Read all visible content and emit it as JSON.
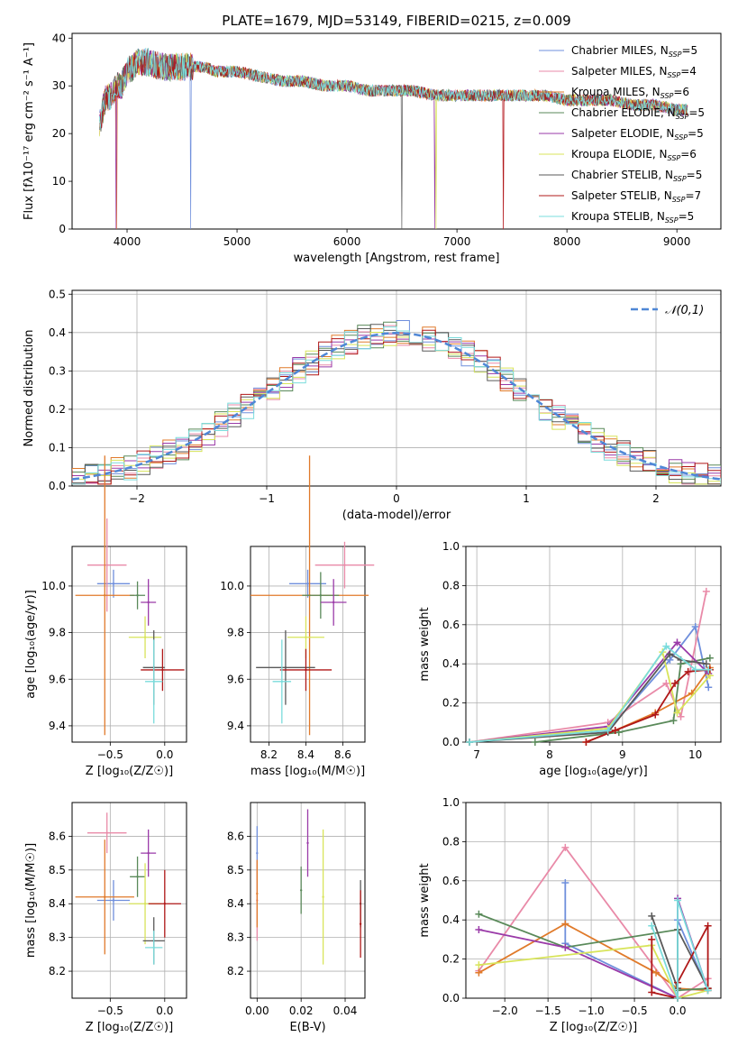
{
  "figure_title": "PLATE=1679, MJD=53149, FIBERID=0215, z=0.009",
  "colors": {
    "Chabrier MILES": "#6f8fdc",
    "Salpeter MILES": "#e98aa8",
    "Kroupa MILES": "#e07a2a",
    "Chabrier ELODIE": "#5a8a5a",
    "Salpeter ELODIE": "#9a3aa8",
    "Kroupa ELODIE": "#d8e45a",
    "Chabrier STELIB": "#5a5a5a",
    "Salpeter STELIB": "#b01818",
    "Kroupa STELIB": "#7adcdc",
    "normal": "#4f87d6"
  },
  "chart_data": [
    {
      "type": "line",
      "panel": "spectrum",
      "xlabel": "wavelength [Angstrom, rest frame]",
      "ylabel": "Flux [fλ10⁻¹⁷ erg cm⁻² s⁻¹ A⁻¹]",
      "xlim": [
        3500,
        9400
      ],
      "ylim": [
        0,
        41
      ],
      "xticks": [
        "4000",
        "5000",
        "6000",
        "7000",
        "8000",
        "9000"
      ],
      "yticks": [
        "0",
        "10",
        "20",
        "30",
        "40"
      ],
      "x": [
        3750,
        3800,
        3850,
        3900,
        3950,
        4000,
        4050,
        4100,
        4150,
        4200,
        4300,
        4400,
        4500,
        4600,
        4700,
        4800,
        4900,
        5000,
        5200,
        5400,
        5600,
        5800,
        6000,
        6200,
        6400,
        6600,
        6800,
        7000,
        7200,
        7400,
        7600,
        7800,
        8000,
        8200,
        8400,
        8600,
        8800,
        9000,
        9100
      ],
      "base_flux": [
        22,
        27,
        28,
        30,
        30,
        33,
        34,
        35,
        35,
        35,
        34,
        34,
        34,
        34,
        34,
        33,
        33,
        33,
        32,
        31,
        31,
        30,
        30,
        29,
        29,
        29,
        28,
        28,
        28,
        28,
        28,
        28,
        27,
        27,
        27,
        26,
        26,
        25,
        25
      ],
      "series": [
        {
          "name": "Chabrier MILES, N_SSP=5"
        },
        {
          "name": "Salpeter MILES, N_SSP=4"
        },
        {
          "name": "Kroupa MILES, N_SSP=6"
        },
        {
          "name": "Chabrier ELODIE, N_SSP=5"
        },
        {
          "name": "Salpeter ELODIE, N_SSP=5"
        },
        {
          "name": "Kroupa ELODIE, N_SSP=6"
        },
        {
          "name": "Chabrier STELIB, N_SSP=5"
        },
        {
          "name": "Salpeter STELIB, N_SSP=7"
        },
        {
          "name": "Kroupa STELIB, N_SSP=5"
        }
      ]
    },
    {
      "type": "line",
      "panel": "residuals",
      "xlabel": "(data-model)/error",
      "ylabel": "Normed distribution",
      "xlim": [
        -2.5,
        2.5
      ],
      "ylim": [
        0,
        0.51
      ],
      "xticks": [
        "−2",
        "−1",
        "0",
        "1",
        "2"
      ],
      "yticks": [
        "0.0",
        "0.1",
        "0.2",
        "0.3",
        "0.4",
        "0.5"
      ],
      "legend": "𝒩(0,1)",
      "legend_position": "top-right",
      "bin_width": 0.1
    },
    {
      "type": "scatter",
      "panel": "age-vs-Z",
      "xlabel": "Z [log₁₀(Z/Z☉)]",
      "ylabel": "age  [log₁₀(age/yr)]",
      "xlim": [
        -0.85,
        0.2
      ],
      "ylim": [
        9.33,
        10.17
      ],
      "xticks": [
        "−0.5",
        "0.0"
      ],
      "yticks": [
        "9.4",
        "9.6",
        "9.8",
        "10.0"
      ],
      "points": [
        {
          "x": -0.47,
          "xerr": 0.15,
          "y": 10.01,
          "yerr": 0.06
        },
        {
          "x": -0.53,
          "xerr": 0.18,
          "y": 10.09,
          "yerr": 0.2
        },
        {
          "x": -0.55,
          "xerr": 0.27,
          "y": 9.96,
          "yerr": 0.6
        },
        {
          "x": -0.25,
          "xerr": 0.07,
          "y": 9.96,
          "yerr": 0.06
        },
        {
          "x": -0.15,
          "xerr": 0.07,
          "y": 9.93,
          "yerr": 0.1
        },
        {
          "x": -0.18,
          "xerr": 0.15,
          "y": 9.78,
          "yerr": 0.09
        },
        {
          "x": -0.1,
          "xerr": 0.1,
          "y": 9.65,
          "yerr": 0.16
        },
        {
          "x": -0.02,
          "xerr": 0.2,
          "y": 9.64,
          "yerr": 0.09
        },
        {
          "x": -0.1,
          "xerr": 0.08,
          "y": 9.59,
          "yerr": 0.18
        }
      ]
    },
    {
      "type": "scatter",
      "panel": "age-vs-mass",
      "xlabel": "mass [log₁₀(M/M☉)]",
      "ylabel": "",
      "xlim": [
        8.1,
        8.72
      ],
      "ylim": [
        9.33,
        10.17
      ],
      "xticks": [
        "8.2",
        "8.4",
        "8.6"
      ],
      "yticks": [
        "9.4",
        "9.6",
        "9.8",
        "10.0"
      ],
      "points": [
        {
          "x": 8.41,
          "xerr": 0.1,
          "y": 10.01,
          "yerr": 0.06
        },
        {
          "x": 8.61,
          "xerr": 0.16,
          "y": 10.09,
          "yerr": 0.1
        },
        {
          "x": 8.42,
          "xerr": 0.32,
          "y": 9.96,
          "yerr": 0.6
        },
        {
          "x": 8.48,
          "xerr": 0.1,
          "y": 9.96,
          "yerr": 0.1
        },
        {
          "x": 8.55,
          "xerr": 0.07,
          "y": 9.93,
          "yerr": 0.1
        },
        {
          "x": 8.4,
          "xerr": 0.1,
          "y": 9.78,
          "yerr": 0.09
        },
        {
          "x": 8.29,
          "xerr": 0.16,
          "y": 9.65,
          "yerr": 0.16
        },
        {
          "x": 8.4,
          "xerr": 0.14,
          "y": 9.64,
          "yerr": 0.09
        },
        {
          "x": 8.27,
          "xerr": 0.05,
          "y": 9.59,
          "yerr": 0.18
        }
      ]
    },
    {
      "type": "line",
      "panel": "mass-weight-vs-age",
      "xlabel": "age  [log₁₀(age/yr)]",
      "ylabel": "mass weight",
      "xlim": [
        6.85,
        10.35
      ],
      "ylim": [
        0,
        1.0
      ],
      "xticks": [
        "7",
        "8",
        "9",
        "10"
      ],
      "yticks": [
        "0.0",
        "0.2",
        "0.4",
        "0.6",
        "0.8",
        "1.0"
      ],
      "series": [
        {
          "x": [
            6.9,
            8.8,
            9.65,
            10.0,
            10.18
          ],
          "y": [
            0.0,
            0.06,
            0.42,
            0.59,
            0.28
          ]
        },
        {
          "x": [
            6.9,
            8.8,
            9.6,
            9.8,
            10.15
          ],
          "y": [
            0.0,
            0.1,
            0.3,
            0.13,
            0.77
          ]
        },
        {
          "x": [
            8.5,
            8.9,
            9.45,
            9.95,
            10.2
          ],
          "y": [
            0.0,
            0.06,
            0.15,
            0.25,
            0.38
          ]
        },
        {
          "x": [
            7.8,
            8.95,
            9.7,
            9.8,
            10.2
          ],
          "y": [
            0.0,
            0.05,
            0.11,
            0.4,
            0.43
          ]
        },
        {
          "x": [
            6.9,
            8.8,
            9.75,
            10.18
          ],
          "y": [
            0.0,
            0.08,
            0.51,
            0.35
          ]
        },
        {
          "x": [
            6.9,
            8.8,
            9.55,
            9.75,
            10.2
          ],
          "y": [
            0.0,
            0.07,
            0.46,
            0.15,
            0.34
          ]
        },
        {
          "x": [
            6.9,
            8.8,
            9.65,
            9.8,
            10.15
          ],
          "y": [
            0.0,
            0.05,
            0.45,
            0.42,
            0.4
          ]
        },
        {
          "x": [
            8.5,
            8.9,
            9.45,
            9.72,
            9.9,
            10.2
          ],
          "y": [
            0.0,
            0.06,
            0.14,
            0.3,
            0.36,
            0.37
          ]
        },
        {
          "x": [
            6.9,
            8.8,
            9.6,
            10.0,
            10.18
          ],
          "y": [
            0.0,
            0.06,
            0.49,
            0.37,
            0.37
          ]
        }
      ]
    },
    {
      "type": "scatter",
      "panel": "mass-vs-Z",
      "xlabel": "Z [log₁₀(Z/Z☉)]",
      "ylabel": "mass [log₁₀(M/M☉)]",
      "xlim": [
        -0.85,
        0.2
      ],
      "ylim": [
        8.12,
        8.7
      ],
      "xticks": [
        "−0.5",
        "0.0"
      ],
      "yticks": [
        "8.2",
        "8.3",
        "8.4",
        "8.5",
        "8.6"
      ],
      "points": [
        {
          "x": -0.47,
          "xerr": 0.15,
          "y": 8.41,
          "yerr": 0.06
        },
        {
          "x": -0.53,
          "xerr": 0.18,
          "y": 8.61,
          "yerr": 0.06
        },
        {
          "x": -0.55,
          "xerr": 0.27,
          "y": 8.42,
          "yerr": 0.17
        },
        {
          "x": -0.25,
          "xerr": 0.07,
          "y": 8.48,
          "yerr": 0.06
        },
        {
          "x": -0.15,
          "xerr": 0.07,
          "y": 8.55,
          "yerr": 0.07
        },
        {
          "x": -0.18,
          "xerr": 0.15,
          "y": 8.4,
          "yerr": 0.12
        },
        {
          "x": -0.1,
          "xerr": 0.1,
          "y": 8.29,
          "yerr": 0.07
        },
        {
          "x": 0.0,
          "xerr": 0.15,
          "y": 8.4,
          "yerr": 0.1
        },
        {
          "x": -0.1,
          "xerr": 0.08,
          "y": 8.27,
          "yerr": 0.05
        }
      ]
    },
    {
      "type": "scatter",
      "panel": "mass-vs-EBV",
      "xlabel": "E(B-V)",
      "ylabel": "",
      "xlim": [
        -0.003,
        0.049
      ],
      "ylim": [
        8.12,
        8.7
      ],
      "xticks": [
        "0.00",
        "0.02",
        "0.04"
      ],
      "yticks": [
        "8.2",
        "8.3",
        "8.4",
        "8.5",
        "8.6"
      ],
      "points": [
        {
          "x": 0.0,
          "y": 8.55,
          "yerr": 0.08
        },
        {
          "x": 0.0,
          "y": 8.41,
          "yerr": 0.12
        },
        {
          "x": 0.0,
          "y": 8.43,
          "yerr": 0.1
        },
        {
          "x": 0.02,
          "y": 8.44,
          "yerr": 0.07
        },
        {
          "x": 0.023,
          "y": 8.58,
          "yerr": 0.1
        },
        {
          "x": 0.03,
          "y": 8.42,
          "yerr": 0.2
        },
        {
          "x": 0.047,
          "y": 8.4,
          "yerr": 0.07
        },
        {
          "x": 0.047,
          "y": 8.34,
          "yerr": 0.1
        }
      ]
    },
    {
      "type": "line",
      "panel": "mass-weight-vs-Z",
      "xlabel": "Z [log₁₀(Z/Z☉)]",
      "ylabel": "mass weight",
      "xlim": [
        -2.45,
        0.5
      ],
      "ylim": [
        0,
        1.0
      ],
      "xticks": [
        "−2.0",
        "−1.5",
        "−1.0",
        "−0.5",
        "0.0"
      ],
      "yticks": [
        "0.0",
        "0.2",
        "0.4",
        "0.6",
        "0.8",
        "1.0"
      ],
      "series": [
        {
          "x": [
            -1.3,
            -1.3,
            0.0,
            0.0,
            0.35
          ],
          "y": [
            0.59,
            0.28,
            0.0,
            0.4,
            0.04
          ]
        },
        {
          "x": [
            -2.3,
            -1.3,
            0.0,
            0.35
          ],
          "y": [
            0.14,
            0.77,
            0.0,
            0.1
          ]
        },
        {
          "x": [
            -2.3,
            -1.3,
            -0.25,
            0.0,
            0.35
          ],
          "y": [
            0.13,
            0.38,
            0.13,
            0.05,
            0.04
          ]
        },
        {
          "x": [
            -2.3,
            -1.3,
            0.0,
            0.0,
            0.35
          ],
          "y": [
            0.43,
            0.26,
            0.35,
            0.04,
            0.05
          ]
        },
        {
          "x": [
            -2.3,
            -1.3,
            0.0,
            0.0,
            0.35
          ],
          "y": [
            0.35,
            0.26,
            0.0,
            0.51,
            0.04
          ]
        },
        {
          "x": [
            -2.3,
            -0.3,
            0.0,
            0.35
          ],
          "y": [
            0.17,
            0.27,
            0.0,
            0.04
          ]
        },
        {
          "x": [
            -0.3,
            0.0,
            0.0,
            0.35
          ],
          "y": [
            0.42,
            0.05,
            0.35,
            0.05
          ]
        },
        {
          "x": [
            -0.3,
            -0.3,
            0.0,
            0.0,
            0.35,
            0.35
          ],
          "y": [
            0.3,
            0.03,
            0.0,
            0.08,
            0.37,
            0.05
          ]
        },
        {
          "x": [
            -0.3,
            0.0,
            0.0,
            0.35
          ],
          "y": [
            0.37,
            0.0,
            0.5,
            0.04
          ]
        }
      ]
    }
  ]
}
